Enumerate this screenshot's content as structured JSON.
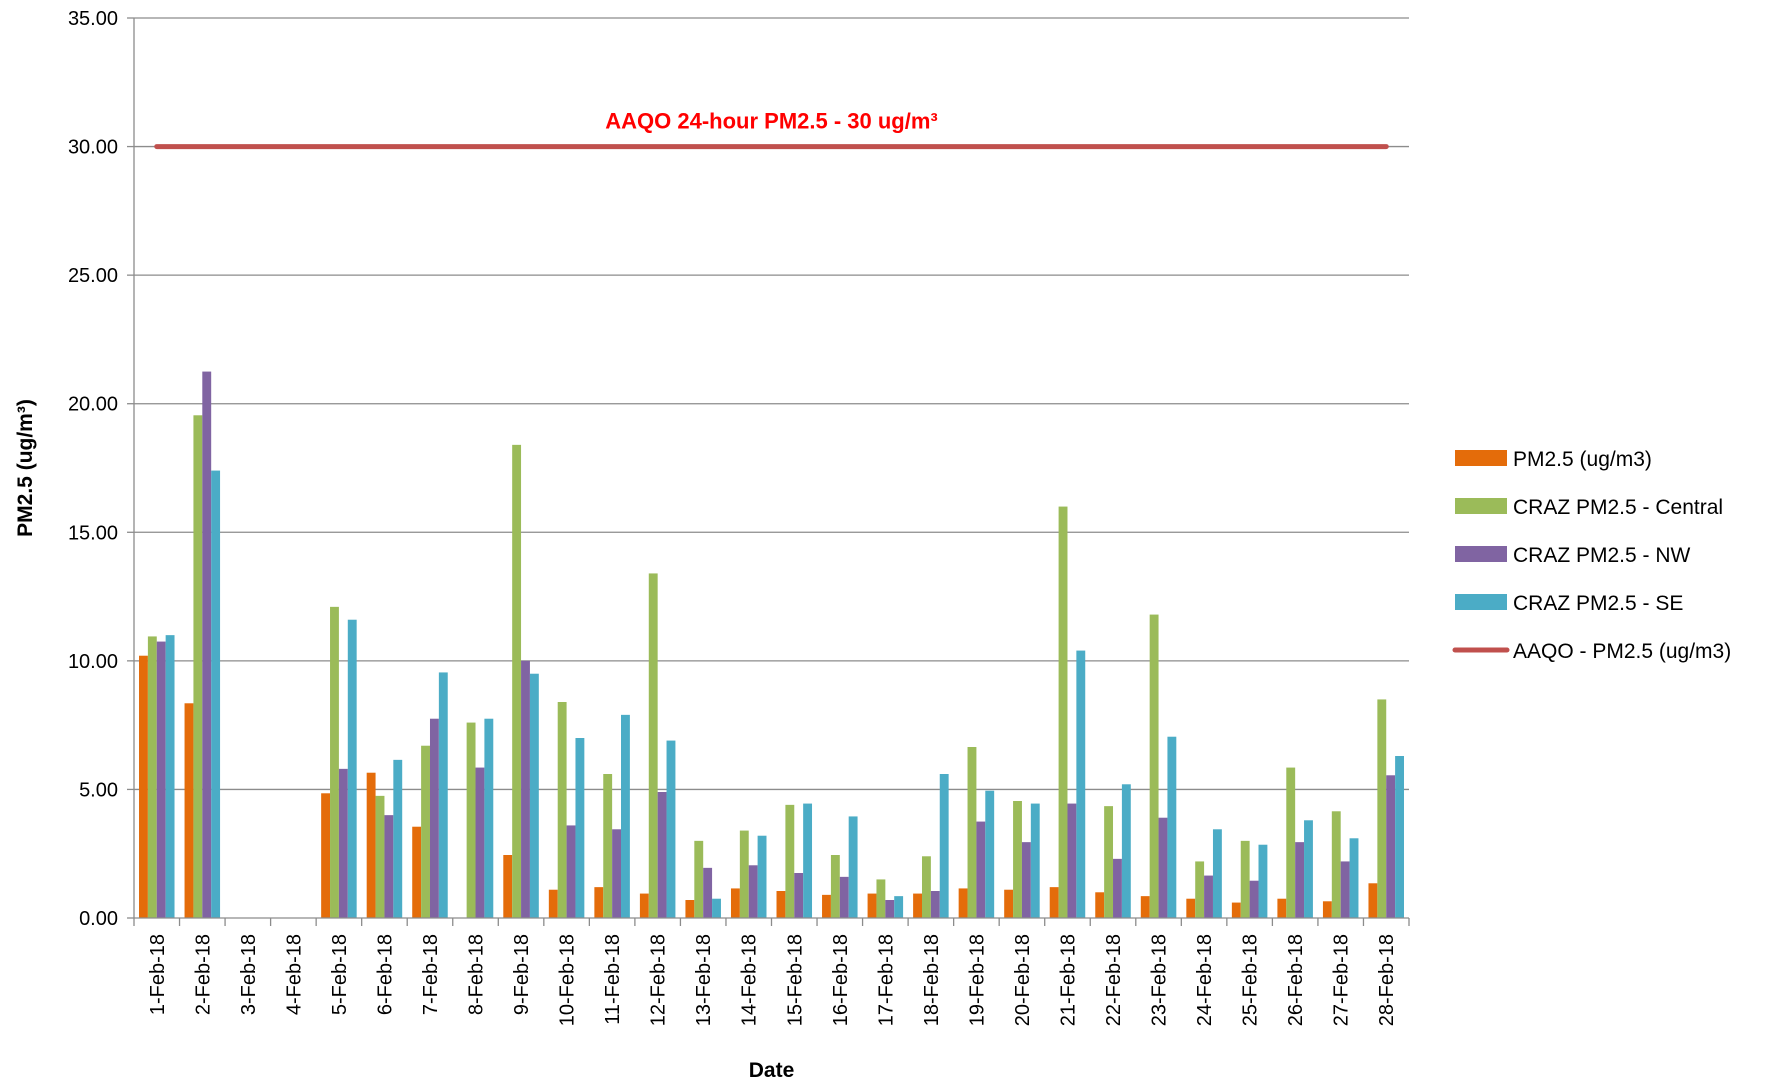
{
  "chart_data": {
    "type": "bar",
    "title": "",
    "xlabel": "Date",
    "ylabel": "PM2.5 (ug/m³)",
    "ylim": [
      0,
      35
    ],
    "yticks": [
      "0.00",
      "5.00",
      "10.00",
      "15.00",
      "20.00",
      "25.00",
      "30.00",
      "35.00"
    ],
    "grid": "horizontal",
    "legend_position": "right",
    "categories": [
      "1-Feb-18",
      "2-Feb-18",
      "3-Feb-18",
      "4-Feb-18",
      "5-Feb-18",
      "6-Feb-18",
      "7-Feb-18",
      "8-Feb-18",
      "9-Feb-18",
      "10-Feb-18",
      "11-Feb-18",
      "12-Feb-18",
      "13-Feb-18",
      "14-Feb-18",
      "15-Feb-18",
      "16-Feb-18",
      "17-Feb-18",
      "18-Feb-18",
      "19-Feb-18",
      "20-Feb-18",
      "21-Feb-18",
      "22-Feb-18",
      "23-Feb-18",
      "24-Feb-18",
      "25-Feb-18",
      "26-Feb-18",
      "27-Feb-18",
      "28-Feb-18"
    ],
    "series": [
      {
        "name": "PM2.5 (ug/m3)",
        "color": "#E46C0A",
        "values": [
          10.2,
          8.35,
          null,
          null,
          4.85,
          5.65,
          3.55,
          null,
          2.45,
          1.1,
          1.2,
          0.95,
          0.7,
          1.15,
          1.05,
          0.9,
          0.95,
          0.95,
          1.15,
          1.1,
          1.2,
          1.0,
          0.85,
          0.75,
          0.6,
          0.75,
          0.65,
          1.35
        ]
      },
      {
        "name": "CRAZ PM2.5 - Central",
        "color": "#9BBB59",
        "values": [
          10.95,
          19.55,
          null,
          null,
          12.1,
          4.75,
          6.7,
          7.6,
          18.4,
          8.4,
          5.6,
          13.4,
          3.0,
          3.4,
          4.4,
          2.45,
          1.5,
          2.4,
          6.65,
          4.55,
          16.0,
          4.35,
          11.8,
          2.2,
          3.0,
          5.85,
          4.15,
          8.5
        ]
      },
      {
        "name": "CRAZ PM2.5 - NW",
        "color": "#8064A2",
        "values": [
          10.75,
          21.25,
          null,
          null,
          5.8,
          4.0,
          7.75,
          5.85,
          10.0,
          3.6,
          3.45,
          4.9,
          1.95,
          2.05,
          1.75,
          1.6,
          0.7,
          1.05,
          3.75,
          2.95,
          4.45,
          2.3,
          3.9,
          1.65,
          1.45,
          2.95,
          2.2,
          5.55
        ]
      },
      {
        "name": "CRAZ PM2.5 - SE",
        "color": "#4BACC6",
        "values": [
          11.0,
          17.4,
          null,
          null,
          11.6,
          6.15,
          9.55,
          7.75,
          9.5,
          7.0,
          7.9,
          6.9,
          0.75,
          3.2,
          4.45,
          3.95,
          0.85,
          5.6,
          4.95,
          4.45,
          10.4,
          5.2,
          7.05,
          3.45,
          2.85,
          3.8,
          3.1,
          6.3
        ]
      }
    ],
    "threshold": {
      "name": "AAQO - PM2.5 (ug/m3)",
      "value": 30,
      "color": "#C0504D"
    },
    "annotation": {
      "text": "AAQO 24-hour PM2.5 - 30 ug/m³",
      "color": "#FF0000"
    }
  }
}
